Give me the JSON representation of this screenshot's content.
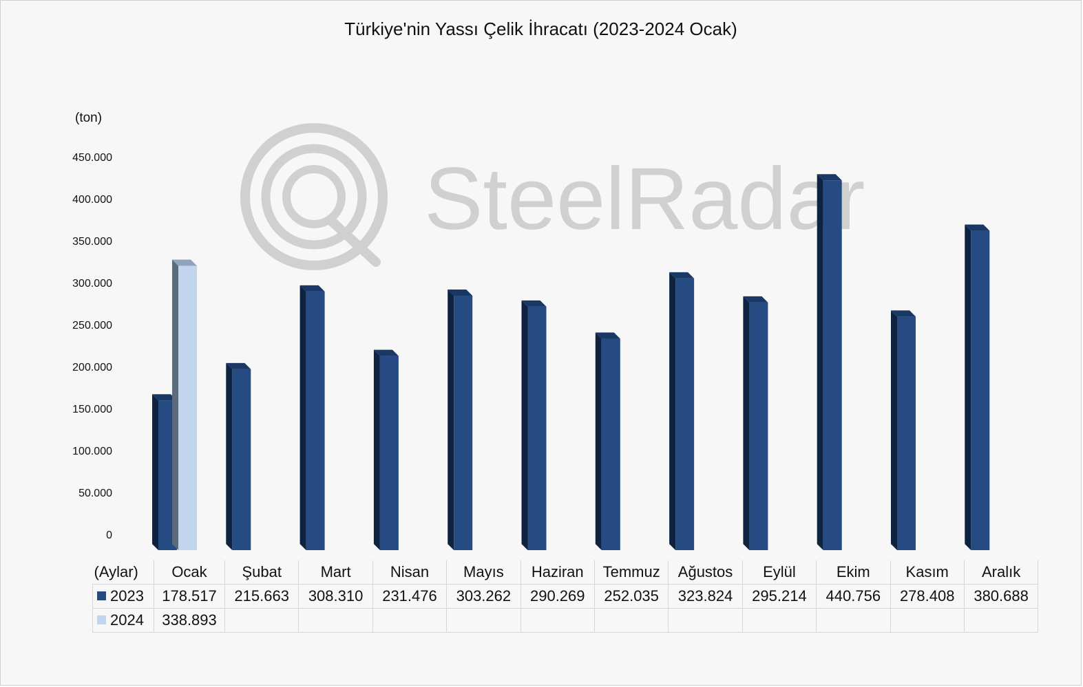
{
  "chart_data": {
    "type": "bar",
    "title": "Türkiye'nin Yassı Çelik İhracatı (2023-2024 Ocak)",
    "ylabel": "(ton)",
    "xlabel": "(Aylar)",
    "ylim": [
      0,
      450000
    ],
    "yticks": [
      "0",
      "50.000",
      "100.000",
      "150.000",
      "200.000",
      "250.000",
      "300.000",
      "350.000",
      "400.000",
      "450.000"
    ],
    "categories": [
      "Ocak",
      "Şubat",
      "Mart",
      "Nisan",
      "Mayıs",
      "Haziran",
      "Temmuz",
      "Ağustos",
      "Eylül",
      "Ekim",
      "Kasım",
      "Aralık"
    ],
    "series": [
      {
        "name": "2023",
        "color": "#264a82",
        "values": [
          178517,
          215663,
          308310,
          231476,
          303262,
          290269,
          252035,
          323824,
          295214,
          440756,
          278408,
          380688
        ],
        "labels": [
          "178.517",
          "215.663",
          "308.310",
          "231.476",
          "303.262",
          "290.269",
          "252.035",
          "323.824",
          "295.214",
          "440.756",
          "278.408",
          "380.688"
        ]
      },
      {
        "name": "2024",
        "color": "#c1d5ee",
        "values": [
          338893,
          null,
          null,
          null,
          null,
          null,
          null,
          null,
          null,
          null,
          null,
          null
        ],
        "labels": [
          "338.893",
          "",
          "",
          "",
          "",
          "",
          "",
          "",
          "",
          "",
          "",
          ""
        ]
      }
    ],
    "grid": false,
    "legend": "data-table"
  },
  "watermark": {
    "text": "SteelRadar"
  }
}
